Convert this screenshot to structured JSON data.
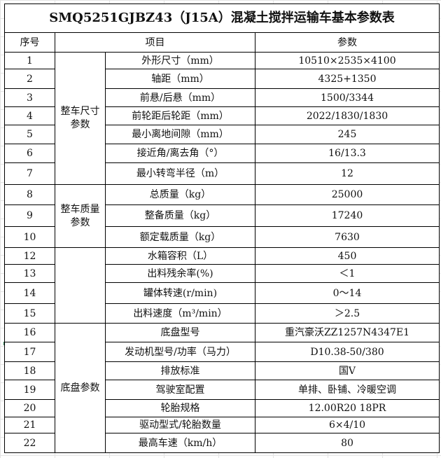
{
  "title": "SMQ5251GJBZ43（J15A）混凝土搅拌运输车基本参数表",
  "headers": {
    "seq": "序号",
    "item": "项目",
    "value": "参数"
  },
  "groups": [
    {
      "label": "整车尺寸\n参数",
      "rows": [
        {
          "seq": "1",
          "item": "外形尺寸（mm）",
          "value": "10510×2535×4100"
        },
        {
          "seq": "2",
          "item": "轴距（mm）",
          "value": "4325+1350"
        },
        {
          "seq": "3",
          "item": "前悬/后悬（mm）",
          "value": "1500/3344"
        },
        {
          "seq": "4",
          "item": "前轮距后轮距（mm）",
          "value": "2022/1830/1830"
        },
        {
          "seq": "5",
          "item": "最小离地间隙（mm）",
          "value": "245"
        },
        {
          "seq": "6",
          "item": "接近角/离去角（°）",
          "value": "16/13.3"
        },
        {
          "seq": "7",
          "item": "最小转弯半径（m）",
          "value": "12"
        }
      ]
    },
    {
      "label": "整车质量\n参数",
      "rows": [
        {
          "seq": "8",
          "item": "总质量（kg）",
          "value": "25000"
        },
        {
          "seq": "9",
          "item": "整备质量（kg）",
          "value": "17240"
        },
        {
          "seq": "10",
          "item": "额定载质量（kg）",
          "value": "7630"
        }
      ]
    },
    {
      "label": "",
      "rows": [
        {
          "seq": "12",
          "item": "水箱容积（L）",
          "value": "450"
        },
        {
          "seq": "13",
          "item": "出料残余率(%)",
          "value": "＜1"
        },
        {
          "seq": "14",
          "item": "罐体转速(r/min)",
          "value": "0～14"
        },
        {
          "seq": "15",
          "item": "出料速度（m³/min）",
          "value": "＞2.5"
        }
      ]
    },
    {
      "label": "底盘参数",
      "rows": [
        {
          "seq": "16",
          "item": "底盘型号",
          "value": "重汽豪沃ZZ1257N4347E1"
        },
        {
          "seq": "17",
          "item": "发动机型号/功率（马力）",
          "value": "D10.38-50/380"
        },
        {
          "seq": "18",
          "item": "排放标准",
          "value": "国Ⅴ"
        },
        {
          "seq": "19",
          "item": "驾驶室配置",
          "value": "单排、卧铺、冷暖空调"
        },
        {
          "seq": "20",
          "item": "轮胎规格",
          "value": "12.00R20 18PR"
        },
        {
          "seq": "21",
          "item": "驱动型式/轮胎数量",
          "value": "6×4/10"
        },
        {
          "seq": "22",
          "item": "最高车速（km/h）",
          "value": "80"
        }
      ]
    }
  ]
}
